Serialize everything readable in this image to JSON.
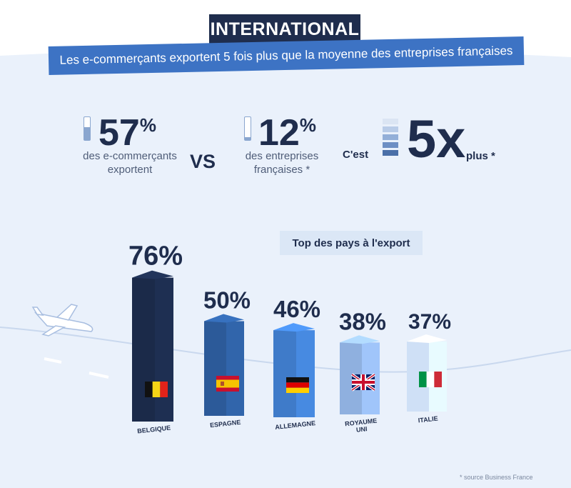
{
  "header": {
    "title": "INTERNATIONAL",
    "subtitle": "Les e-commerçants exportent 5 fois plus que la moyenne des entreprises françaises"
  },
  "stats": {
    "ecommerce": {
      "value": "57",
      "unit": "%",
      "desc_line1": "des e-commerçants",
      "desc_line2": "exportent"
    },
    "vs_label": "VS",
    "companies": {
      "value": "12",
      "unit": "%",
      "desc_line1": "des entreprises",
      "desc_line2": "françaises *"
    },
    "ratio": {
      "prefix": "C'est",
      "value": "5x",
      "suffix": "plus *"
    }
  },
  "chart_data": {
    "type": "bar",
    "title": "Top des pays à l'export",
    "categories": [
      "BELGIQUE",
      "ESPAGNE",
      "ALLEMAGNE",
      "ROYAUME UNI",
      "ITALIE"
    ],
    "values": [
      76,
      50,
      46,
      38,
      37
    ],
    "value_labels": [
      "76%",
      "50%",
      "46%",
      "38%",
      "37%"
    ],
    "colors": [
      "#1b2a49",
      "#2c5a99",
      "#3f7bc9",
      "#8fb0df",
      "#cfe0f6"
    ],
    "flags": [
      "belgium-flag-icon",
      "spain-flag-icon",
      "germany-flag-icon",
      "uk-flag-icon",
      "italy-flag-icon"
    ]
  },
  "footer": {
    "source": "* source Business France"
  },
  "colors": {
    "navy": "#1f2d4d",
    "accent_blue": "#3d73c4",
    "light_blue": "#dbe7f6"
  }
}
